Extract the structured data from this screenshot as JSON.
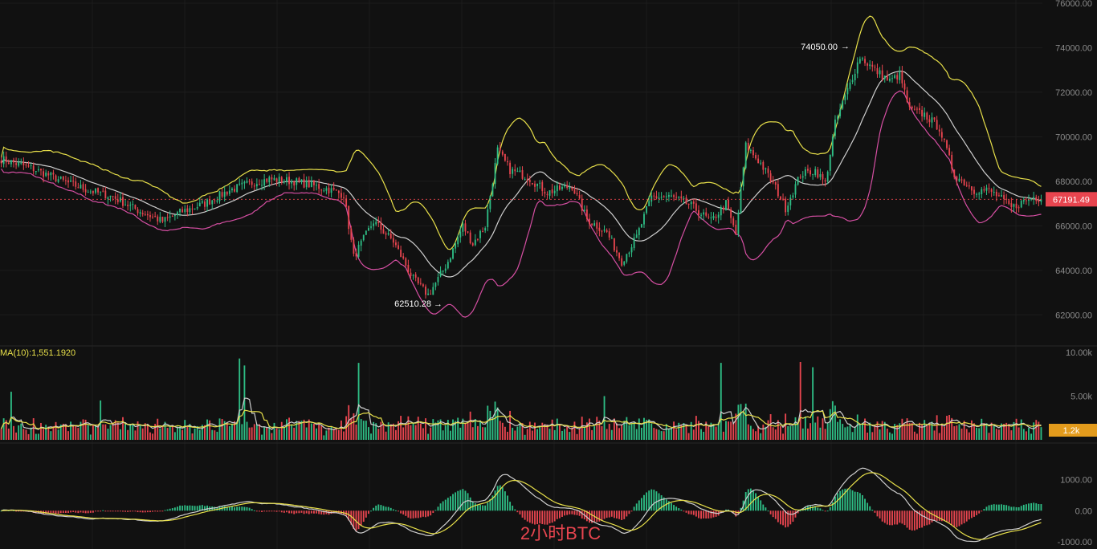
{
  "colors": {
    "background": "#111111",
    "grid": "#1c1c1c",
    "axis_text": "#8a8a8a",
    "up": "#2ebd85",
    "down": "#e8454f",
    "boll_upper": "#e8e04a",
    "boll_middle": "#cfcfcf",
    "boll_lower": "#d64fa3",
    "price_tag": "#e8454f",
    "volume_tag": "#e39b1c",
    "watermark": "#e8454f",
    "annotation": "#ffffff",
    "ma_label": "#e8e04a"
  },
  "watermark": "2小时BTC",
  "chart_data": [
    {
      "type": "candlestick",
      "panel": "price",
      "ylim": [
        61000,
        76000
      ],
      "yticks": [
        62000,
        64000,
        66000,
        68000,
        70000,
        72000,
        74000,
        76000
      ],
      "ytick_labels": [
        "62000.00",
        "64000.00",
        "66000.00",
        "68000.00",
        "70000.00",
        "72000.00",
        "74000.00",
        "76000.00"
      ],
      "last_price": 67191.49,
      "last_price_label": "67191.49",
      "annotations": [
        {
          "text": "74050.00",
          "price": 74050,
          "pointer": "right"
        },
        {
          "text": "62510.28",
          "price": 62510.28,
          "pointer": "right"
        }
      ],
      "keyframes": [
        [
          0,
          69000
        ],
        [
          12,
          68600
        ],
        [
          25,
          68000
        ],
        [
          35,
          67600
        ],
        [
          45,
          67300
        ],
        [
          55,
          66700
        ],
        [
          65,
          66200
        ],
        [
          72,
          66600
        ],
        [
          82,
          67000
        ],
        [
          92,
          67600
        ],
        [
          100,
          67900
        ],
        [
          108,
          68100
        ],
        [
          118,
          68000
        ],
        [
          130,
          67700
        ],
        [
          138,
          67400
        ],
        [
          142,
          64600
        ],
        [
          150,
          66200
        ],
        [
          158,
          65300
        ],
        [
          166,
          63600
        ],
        [
          172,
          62900
        ],
        [
          176,
          63600
        ],
        [
          180,
          64400
        ],
        [
          186,
          66000
        ],
        [
          190,
          65200
        ],
        [
          195,
          66000
        ],
        [
          200,
          69400
        ],
        [
          205,
          68500
        ],
        [
          212,
          68200
        ],
        [
          220,
          67500
        ],
        [
          230,
          67800
        ],
        [
          236,
          66300
        ],
        [
          244,
          65700
        ],
        [
          250,
          64400
        ],
        [
          256,
          65500
        ],
        [
          262,
          67300
        ],
        [
          270,
          67300
        ],
        [
          278,
          66900
        ],
        [
          286,
          66200
        ],
        [
          292,
          67000
        ],
        [
          296,
          65600
        ],
        [
          300,
          69600
        ],
        [
          306,
          68800
        ],
        [
          312,
          67700
        ],
        [
          316,
          66800
        ],
        [
          322,
          68300
        ],
        [
          328,
          68500
        ],
        [
          332,
          67900
        ],
        [
          336,
          70600
        ],
        [
          340,
          71800
        ],
        [
          346,
          73600
        ],
        [
          352,
          73000
        ],
        [
          358,
          72500
        ],
        [
          362,
          72800
        ],
        [
          366,
          71200
        ],
        [
          372,
          71000
        ],
        [
          378,
          70400
        ],
        [
          384,
          68300
        ],
        [
          392,
          67600
        ],
        [
          398,
          67600
        ],
        [
          402,
          67300
        ],
        [
          407,
          66800
        ],
        [
          412,
          67100
        ],
        [
          416,
          67300
        ],
        [
          419,
          67191
        ]
      ]
    },
    {
      "type": "bar",
      "panel": "volume",
      "label": "MA(10):1,551.1920",
      "ylim": [
        0,
        10000
      ],
      "yticks": [
        5000,
        10000
      ],
      "ytick_labels": [
        "5.00k",
        "10.00k"
      ],
      "current_volume_label": "1.2k",
      "spikes": [
        {
          "bar": 4,
          "value": 5500
        },
        {
          "bar": 40,
          "value": 4500
        },
        {
          "bar": 96,
          "value": 9300
        },
        {
          "bar": 98,
          "value": 8500
        },
        {
          "bar": 144,
          "value": 8800
        },
        {
          "bar": 243,
          "value": 5000
        },
        {
          "bar": 290,
          "value": 8800
        },
        {
          "bar": 322,
          "value": 8900
        },
        {
          "bar": 327,
          "value": 8300
        }
      ]
    },
    {
      "type": "macd",
      "panel": "macd",
      "ylim": [
        -1050,
        1400
      ],
      "yticks": [
        -1000,
        0,
        1000
      ],
      "ytick_labels": [
        "-1000.00",
        "0.00",
        "1000.00"
      ]
    }
  ]
}
